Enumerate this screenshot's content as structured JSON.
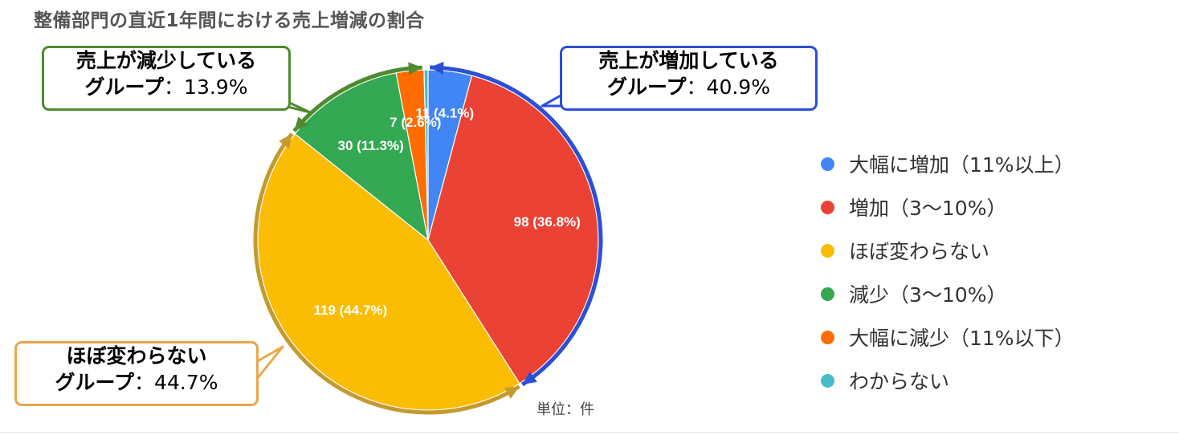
{
  "title": "整備部門の直近1年間における売上増減の割合",
  "unit_label": "単位：件",
  "callouts": {
    "increase": {
      "line1": "売上が増加している",
      "line2_bold": "グループ",
      "line2_rest": "：40.9%"
    },
    "decrease": {
      "line1": "売上が減少している",
      "line2_bold": "グループ",
      "line2_rest": "：13.9%"
    },
    "nochange": {
      "line1": "ほぼ変わらない",
      "line2_bold": "グループ",
      "line2_rest": "：44.7%"
    }
  },
  "chart_data": {
    "type": "pie",
    "title": "整備部門の直近1年間における売上増減の割合",
    "unit": "件",
    "categories": [
      "大幅に増加（11%以上）",
      "増加（3〜10%）",
      "ほぼ変わらない",
      "減少（3〜10%）",
      "大幅に減少（11%以下）",
      "わからない"
    ],
    "values": [
      11,
      98,
      119,
      30,
      7,
      1
    ],
    "percent_labels": [
      "4.1%",
      "36.8%",
      "44.7%",
      "11.3%",
      "2.6%",
      ""
    ],
    "data_labels": [
      "11 (4.1%)",
      "98 (36.8%)",
      "119 (44.7%)",
      "30 (11.3%)",
      "7 (2.6%)",
      ""
    ],
    "colors": [
      "#4285f4",
      "#ea4335",
      "#fbbc04",
      "#34a853",
      "#ff6d01",
      "#46bdc6"
    ],
    "legend_position": "right",
    "start_angle": "12 o'clock, clockwise",
    "groups": [
      {
        "name": "売上が増加しているグループ",
        "percent": "40.9%",
        "color": "#2b4fd6"
      },
      {
        "name": "ほぼ変わらないグループ",
        "percent": "44.7%",
        "color": "#c49a2e"
      },
      {
        "name": "売上が減少しているグループ",
        "percent": "13.9%",
        "color": "#4f8a2f"
      }
    ]
  }
}
